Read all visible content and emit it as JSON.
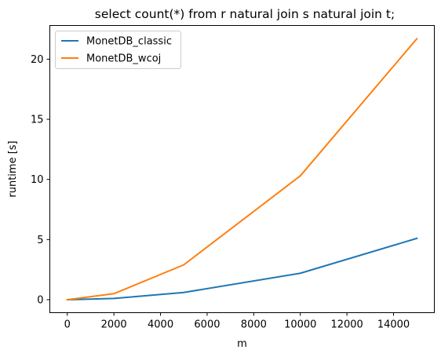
{
  "chart_data": {
    "type": "line",
    "title": "select count(*) from r natural join s natural join t;",
    "xlabel": "m",
    "ylabel": "runtime [s]",
    "xlim": [
      -750,
      15750
    ],
    "ylim": [
      -1.08,
      22.8
    ],
    "xticks": [
      0,
      2000,
      4000,
      6000,
      8000,
      10000,
      12000,
      14000
    ],
    "yticks": [
      0,
      5,
      10,
      15,
      20
    ],
    "grid": false,
    "legend_position": "top-left",
    "series": [
      {
        "name": "MonetDB_classic",
        "color": "#1f77b4",
        "x": [
          0,
          2000,
          5000,
          10000,
          15000
        ],
        "y": [
          0.0,
          0.1,
          0.6,
          2.2,
          5.1
        ]
      },
      {
        "name": "MonetDB_wcoj",
        "color": "#ff7f0e",
        "x": [
          0,
          2000,
          5000,
          10000,
          15000
        ],
        "y": [
          0.0,
          0.5,
          2.9,
          10.3,
          21.7
        ]
      }
    ]
  }
}
